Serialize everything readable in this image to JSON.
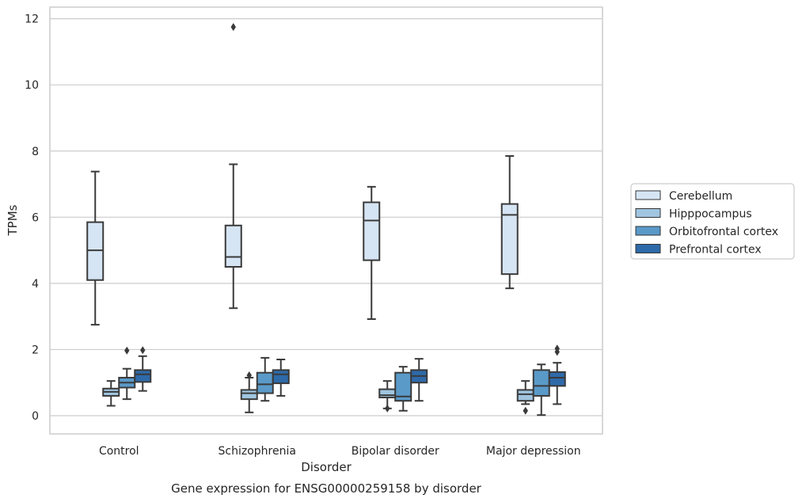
{
  "chart_data": {
    "type": "box",
    "title": "",
    "caption": "Gene expression for ENSG00000259158 by disorder",
    "xlabel": "Disorder",
    "ylabel": "TPMs",
    "ylim": [
      -0.55,
      12.35
    ],
    "yticks": [
      0,
      2,
      4,
      6,
      8,
      10,
      12
    ],
    "grid": true,
    "legend_position": "right",
    "categories": [
      "Control",
      "Schizophrenia",
      "Bipolar disorder",
      "Major depression"
    ],
    "series": [
      {
        "name": "Cerebellum",
        "color": "#d6e5f4",
        "boxes": [
          {
            "whislo": 2.75,
            "q1": 4.1,
            "med": 5.0,
            "q3": 5.85,
            "whishi": 7.38,
            "fliers": []
          },
          {
            "whislo": 3.25,
            "q1": 4.5,
            "med": 4.8,
            "q3": 5.75,
            "whishi": 7.6,
            "fliers": [
              11.75
            ]
          },
          {
            "whislo": 2.92,
            "q1": 4.7,
            "med": 5.9,
            "q3": 6.45,
            "whishi": 6.92,
            "fliers": []
          },
          {
            "whislo": 3.85,
            "q1": 4.28,
            "med": 6.07,
            "q3": 6.4,
            "whishi": 7.85,
            "fliers": []
          }
        ]
      },
      {
        "name": "Hipppocampus",
        "color": "#a0c5e0",
        "boxes": [
          {
            "whislo": 0.3,
            "q1": 0.6,
            "med": 0.72,
            "q3": 0.82,
            "whishi": 1.05,
            "fliers": []
          },
          {
            "whislo": 0.1,
            "q1": 0.5,
            "med": 0.68,
            "q3": 0.78,
            "whishi": 1.15,
            "fliers": [
              1.22
            ]
          },
          {
            "whislo": 0.22,
            "q1": 0.55,
            "med": 0.62,
            "q3": 0.8,
            "whishi": 1.05,
            "fliers": [
              0.22
            ]
          },
          {
            "whislo": 0.35,
            "q1": 0.45,
            "med": 0.65,
            "q3": 0.78,
            "whishi": 1.05,
            "fliers": [
              0.15
            ]
          }
        ]
      },
      {
        "name": "Orbitofrontal cortex",
        "color": "#5a9ac9",
        "boxes": [
          {
            "whislo": 0.5,
            "q1": 0.85,
            "med": 1.0,
            "q3": 1.15,
            "whishi": 1.42,
            "fliers": [
              1.97
            ]
          },
          {
            "whislo": 0.45,
            "q1": 0.68,
            "med": 0.95,
            "q3": 1.3,
            "whishi": 1.75,
            "fliers": []
          },
          {
            "whislo": 0.15,
            "q1": 0.45,
            "med": 0.58,
            "q3": 1.3,
            "whishi": 1.48,
            "fliers": []
          },
          {
            "whislo": 0.02,
            "q1": 0.6,
            "med": 0.9,
            "q3": 1.38,
            "whishi": 1.55,
            "fliers": []
          }
        ]
      },
      {
        "name": "Prefrontal cortex",
        "color": "#2e6aa9",
        "boxes": [
          {
            "whislo": 0.75,
            "q1": 1.02,
            "med": 1.25,
            "q3": 1.38,
            "whishi": 1.8,
            "fliers": [
              1.98
            ]
          },
          {
            "whislo": 0.6,
            "q1": 0.98,
            "med": 1.25,
            "q3": 1.38,
            "whishi": 1.7,
            "fliers": []
          },
          {
            "whislo": 0.45,
            "q1": 1.0,
            "med": 1.2,
            "q3": 1.38,
            "whishi": 1.72,
            "fliers": []
          },
          {
            "whislo": 0.35,
            "q1": 0.9,
            "med": 1.15,
            "q3": 1.32,
            "whishi": 1.6,
            "fliers": [
              1.93,
              2.03
            ]
          }
        ]
      }
    ]
  },
  "labels": {
    "ylabel": "TPMs",
    "xlabel": "Disorder",
    "caption": "Gene expression for ENSG00000259158 by disorder"
  },
  "colors": {
    "grid": "#cccccc",
    "box_edge": "#3a3a3a",
    "frame": "#cccccc"
  }
}
